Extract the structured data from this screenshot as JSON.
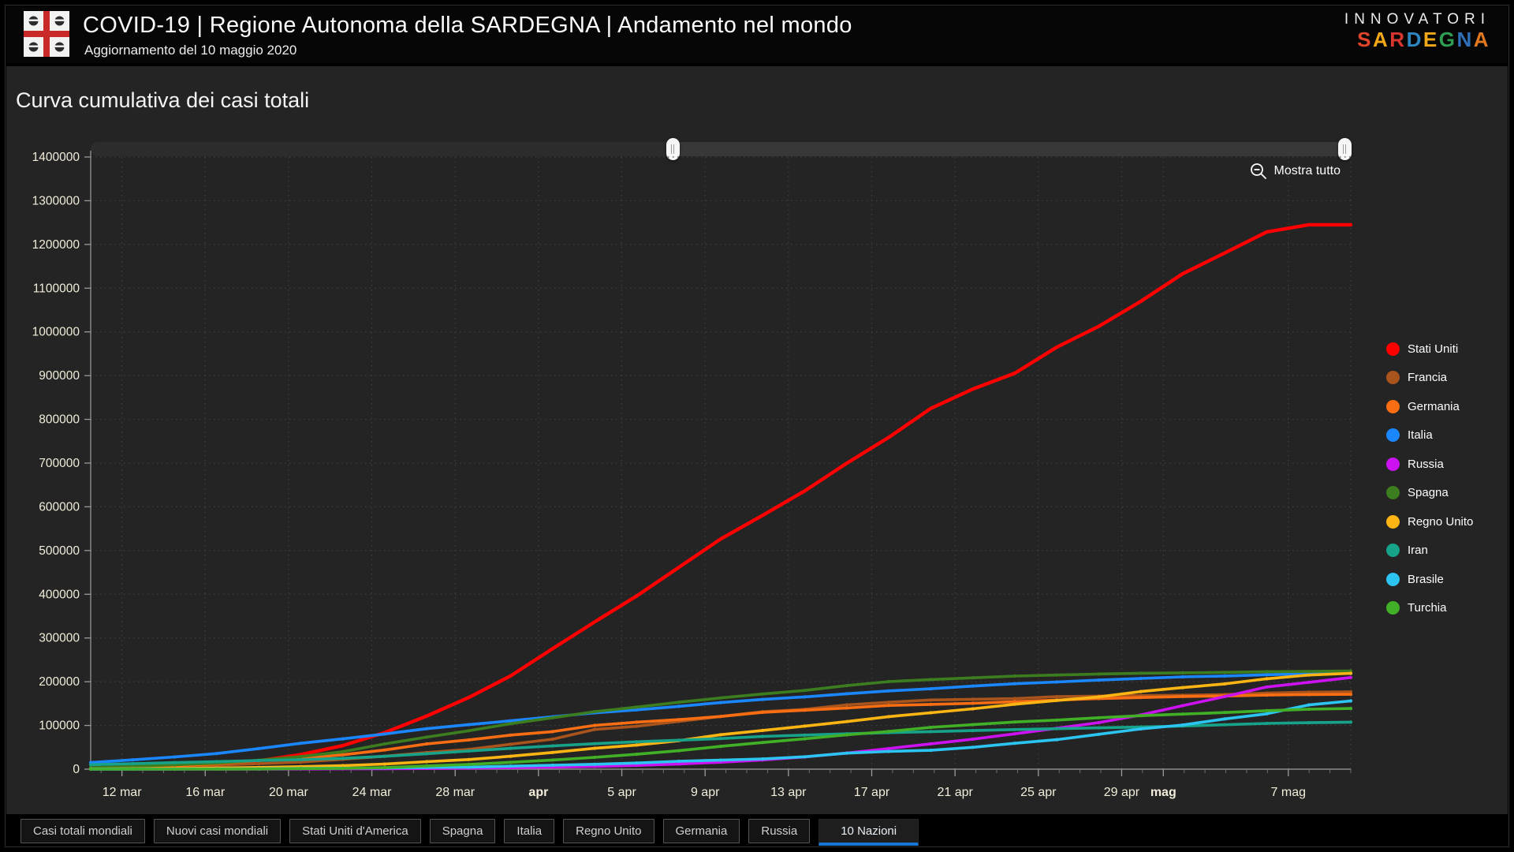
{
  "header": {
    "title": "COVID-19 | Regione Autonoma della SARDEGNA | Andamento nel mondo",
    "subtitle": "Aggiornamento del 10 maggio 2020",
    "brand": {
      "line1": "INNOVATORI",
      "line2_letters": [
        {
          "ch": "S",
          "color": "#e0452b"
        },
        {
          "ch": "A",
          "color": "#f0a818"
        },
        {
          "ch": "R",
          "color": "#d8352f"
        },
        {
          "ch": "D",
          "color": "#2e86c1"
        },
        {
          "ch": "E",
          "color": "#f0a818"
        },
        {
          "ch": "G",
          "color": "#2e9e52"
        },
        {
          "ch": "N",
          "color": "#2e6fb8"
        },
        {
          "ch": "A",
          "color": "#e07820"
        }
      ]
    }
  },
  "toolbar": {
    "show_all_label": "Mostra tutto",
    "show_all_icon": "zoom-out-icon"
  },
  "slider": {
    "handle1_pct": 46.2,
    "handle2_pct": 99.5
  },
  "tabs": {
    "active_underline_color": "#1877d2",
    "active_index": 8,
    "items": [
      "Casi totali mondiali",
      "Nuovi casi mondiali",
      "Stati Uniti d'America",
      "Spagna",
      "Italia",
      "Regno Unito",
      "Germania",
      "Russia",
      "10 Nazioni"
    ]
  },
  "chart_data": {
    "type": "line",
    "title": "Curva cumulativa dei casi totali",
    "xlabel": "",
    "ylabel": "",
    "ylim": [
      0,
      1400000
    ],
    "y_step": 100000,
    "grid": true,
    "legend_position": "right",
    "x_domain_days": [
      -1.5,
      59
    ],
    "x_start_date": "12 mar 2020",
    "x_end_date": "10 mag 2020",
    "x_ticks": [
      {
        "label": "12 mar",
        "day": 0
      },
      {
        "label": "16 mar",
        "day": 4
      },
      {
        "label": "20 mar",
        "day": 8
      },
      {
        "label": "24 mar",
        "day": 12
      },
      {
        "label": "28 mar",
        "day": 16
      },
      {
        "label": "apr",
        "day": 20,
        "bold": true
      },
      {
        "label": "5 apr",
        "day": 24
      },
      {
        "label": "9 apr",
        "day": 28
      },
      {
        "label": "13 apr",
        "day": 32
      },
      {
        "label": "17 apr",
        "day": 36
      },
      {
        "label": "21 apr",
        "day": 40
      },
      {
        "label": "25 apr",
        "day": 44
      },
      {
        "label": "29 apr",
        "day": 48
      },
      {
        "label": "mag",
        "day": 50,
        "bold": true
      },
      {
        "label": "7 mag",
        "day": 56
      }
    ],
    "series": [
      {
        "name": "Stati Uniti",
        "color": "#ff0000",
        "width": 4.4,
        "values": [
          1700,
          2700,
          4600,
          9200,
          19100,
          33300,
          53700,
          83800,
          121500,
          163800,
          213400,
          275600,
          336900,
          396200,
          461400,
          526400,
          580600,
          636400,
          699700,
          758800,
          824900,
          869200,
          905400,
          965000,
          1012600,
          1069800,
          1133000,
          1180400,
          1228600,
          1245000,
          1245000
        ]
      },
      {
        "name": "Francia",
        "color": "#a9541c",
        "values": [
          2900,
          4500,
          6600,
          9100,
          12600,
          16200,
          22600,
          29600,
          38100,
          45200,
          57000,
          68600,
          90900,
          98100,
          109100,
          120600,
          131400,
          136800,
          147100,
          152900,
          158200,
          159900,
          161500,
          165800,
          167100,
          168400,
          169000,
          170600,
          174100,
          176100,
          176900
        ]
      },
      {
        "name": "Germania",
        "color": "#f96d13",
        "values": [
          2700,
          4600,
          7200,
          12300,
          19800,
          24900,
          32900,
          43900,
          57700,
          66900,
          77900,
          85800,
          100100,
          107600,
          113300,
          120500,
          130100,
          134800,
          139900,
          145700,
          148100,
          150600,
          154500,
          158100,
          161500,
          163900,
          166100,
          167300,
          169400,
          170600,
          171300
        ]
      },
      {
        "name": "Italia",
        "color": "#1b87ff",
        "values": [
          15100,
          21200,
          28000,
          35700,
          47000,
          59100,
          69200,
          80500,
          92500,
          101700,
          110600,
          119800,
          128900,
          135600,
          143600,
          152300,
          159500,
          165200,
          172400,
          178900,
          183900,
          189900,
          195400,
          199400,
          203600,
          207400,
          211000,
          213000,
          215900,
          218300,
          219100
        ]
      },
      {
        "name": "Russia",
        "color": "#cc12f0",
        "values": [
          30,
          60,
          90,
          150,
          250,
          370,
          660,
          1000,
          1500,
          2300,
          3500,
          4700,
          6300,
          8700,
          11900,
          15800,
          21100,
          27900,
          36800,
          47100,
          57900,
          68600,
          80900,
          93500,
          106500,
          124000,
          145300,
          165900,
          187900,
          198700,
          209700
        ]
      },
      {
        "name": "Spagna",
        "color": "#3c7d1f",
        "values": [
          3000,
          6300,
          9900,
          13900,
          20400,
          28600,
          39900,
          57800,
          73200,
          87900,
          104100,
          117700,
          131600,
          141900,
          153000,
          163000,
          172000,
          180000,
          191000,
          200200,
          205000,
          209000,
          212900,
          215200,
          217500,
          219400,
          220300,
          221400,
          222900,
          223600,
          224400
        ]
      },
      {
        "name": "Regno Unito",
        "color": "#fdb513",
        "values": [
          600,
          1100,
          1500,
          2600,
          4000,
          5700,
          8100,
          11700,
          17100,
          22100,
          29500,
          38200,
          47800,
          55200,
          65100,
          78900,
          88600,
          98500,
          108700,
          120100,
          129000,
          138100,
          148400,
          157100,
          165200,
          177500,
          186600,
          195000,
          206700,
          215300,
          219200
        ]
      },
      {
        "name": "Iran",
        "color": "#17a389",
        "values": [
          10100,
          12700,
          15000,
          17400,
          19600,
          21600,
          24800,
          29400,
          35400,
          41500,
          47600,
          53200,
          58200,
          62600,
          66200,
          70000,
          74900,
          77900,
          80900,
          83500,
          85900,
          88200,
          90500,
          92600,
          94600,
          96400,
          98600,
          101600,
          104700,
          106200,
          107600
        ]
      },
      {
        "name": "Brasile",
        "color": "#2cc5f2",
        "values": [
          100,
          200,
          300,
          500,
          800,
          1600,
          2200,
          2900,
          3900,
          4600,
          6800,
          9100,
          11100,
          14000,
          18100,
          20700,
          23400,
          28300,
          36600,
          40600,
          43100,
          50000,
          59200,
          67400,
          79700,
          92100,
          101100,
          115000,
          126600,
          146900,
          156100
        ]
      },
      {
        "name": "Turchia",
        "color": "#41b027",
        "values": [
          0,
          10,
          20,
          190,
          360,
          1240,
          1870,
          3630,
          7400,
          10800,
          15700,
          20900,
          27100,
          34100,
          42300,
          52200,
          61000,
          69400,
          78500,
          86300,
          95600,
          101800,
          107800,
          112300,
          117600,
          122400,
          126000,
          129500,
          133700,
          137100,
          138700
        ]
      }
    ]
  }
}
